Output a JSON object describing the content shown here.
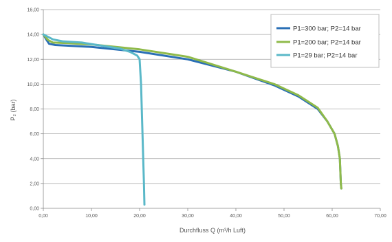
{
  "chart_data": {
    "type": "line",
    "xlabel": "Durchfluss Q (m³/h Luft)",
    "ylabel": "P₂ (bar)",
    "xlim": [
      0,
      70
    ],
    "ylim": [
      0,
      16
    ],
    "xticks": [
      "0,00",
      "10,00",
      "20,00",
      "30,00",
      "40,00",
      "50,00",
      "60,00",
      "70,00"
    ],
    "yticks": [
      "0,00",
      "2,00",
      "4,00",
      "6,00",
      "8,00",
      "10,00",
      "12,00",
      "14,00",
      "16,00"
    ],
    "grid": "horizontal",
    "legend_position": "top-right",
    "series": [
      {
        "name": "P1=300 bar; P2=14 bar",
        "color": "#2a6fb5",
        "points": [
          [
            0,
            14.0
          ],
          [
            0.6,
            13.6
          ],
          [
            1.2,
            13.25
          ],
          [
            2.5,
            13.15
          ],
          [
            10,
            13.0
          ],
          [
            20,
            12.6
          ],
          [
            30,
            12.0
          ],
          [
            40,
            11.0
          ],
          [
            48,
            9.9
          ],
          [
            53,
            9.0
          ],
          [
            57,
            8.0
          ],
          [
            59,
            7.0
          ],
          [
            60.5,
            6.0
          ],
          [
            61.2,
            5.0
          ],
          [
            61.6,
            4.0
          ],
          [
            61.8,
            2.0
          ],
          [
            61.9,
            1.6
          ]
        ]
      },
      {
        "name": "P1=200 bar; P2=14 bar",
        "color": "#8fba4a",
        "points": [
          [
            0,
            14.0
          ],
          [
            1,
            13.55
          ],
          [
            2,
            13.35
          ],
          [
            5,
            13.3
          ],
          [
            10,
            13.2
          ],
          [
            20,
            12.8
          ],
          [
            30,
            12.2
          ],
          [
            40,
            11.0
          ],
          [
            48,
            10.0
          ],
          [
            53,
            9.1
          ],
          [
            57,
            8.1
          ],
          [
            59,
            7.0
          ],
          [
            60.5,
            6.0
          ],
          [
            61.2,
            5.0
          ],
          [
            61.6,
            4.0
          ],
          [
            61.8,
            2.0
          ],
          [
            61.9,
            1.6
          ]
        ]
      },
      {
        "name": "P1=29 bar; P2=14 bar",
        "color": "#5ab8c8",
        "points": [
          [
            0,
            14.0
          ],
          [
            2,
            13.6
          ],
          [
            4,
            13.45
          ],
          [
            8,
            13.35
          ],
          [
            12,
            13.1
          ],
          [
            16,
            12.85
          ],
          [
            18,
            12.6
          ],
          [
            19.5,
            12.3
          ],
          [
            20,
            12.0
          ],
          [
            20.3,
            10.0
          ],
          [
            20.6,
            6.0
          ],
          [
            20.9,
            2.0
          ],
          [
            21.0,
            0.3
          ]
        ]
      }
    ]
  }
}
